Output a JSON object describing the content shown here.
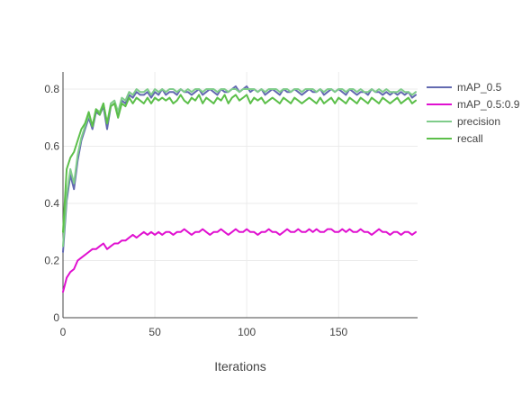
{
  "chart_data": {
    "type": "line",
    "title": "",
    "xlabel": "Iterations",
    "ylabel": "",
    "xlim": [
      0,
      193
    ],
    "ylim": [
      0,
      0.86
    ],
    "x_ticks": [
      0,
      50,
      100,
      150
    ],
    "x_tick_labels": [
      "0",
      "50",
      "100",
      "150"
    ],
    "y_ticks": [
      0,
      0.2,
      0.4,
      0.6,
      0.8
    ],
    "y_tick_labels": [
      "0",
      "0.2",
      "0.4",
      "0.6",
      "0.8"
    ],
    "grid": true,
    "legend_position": "top-right",
    "x_step": 2,
    "series": [
      {
        "name": "mAP_0.5",
        "color": "#636ab0",
        "values": [
          0.23,
          0.41,
          0.5,
          0.45,
          0.55,
          0.62,
          0.66,
          0.7,
          0.66,
          0.72,
          0.71,
          0.74,
          0.66,
          0.74,
          0.75,
          0.71,
          0.76,
          0.75,
          0.78,
          0.77,
          0.79,
          0.78,
          0.78,
          0.79,
          0.77,
          0.79,
          0.78,
          0.8,
          0.78,
          0.79,
          0.79,
          0.78,
          0.8,
          0.79,
          0.79,
          0.78,
          0.79,
          0.8,
          0.78,
          0.79,
          0.8,
          0.79,
          0.78,
          0.8,
          0.79,
          0.79,
          0.8,
          0.81,
          0.79,
          0.8,
          0.81,
          0.79,
          0.8,
          0.79,
          0.8,
          0.78,
          0.79,
          0.8,
          0.79,
          0.78,
          0.8,
          0.79,
          0.79,
          0.8,
          0.79,
          0.78,
          0.79,
          0.8,
          0.79,
          0.79,
          0.8,
          0.78,
          0.79,
          0.8,
          0.79,
          0.8,
          0.79,
          0.78,
          0.8,
          0.79,
          0.78,
          0.79,
          0.79,
          0.78,
          0.8,
          0.79,
          0.79,
          0.78,
          0.79,
          0.78,
          0.79,
          0.78,
          0.79,
          0.78,
          0.79,
          0.77,
          0.78
        ]
      },
      {
        "name": "mAP_0.5:0.9",
        "color": "#e010d0",
        "values": [
          0.09,
          0.14,
          0.16,
          0.17,
          0.2,
          0.21,
          0.22,
          0.23,
          0.24,
          0.24,
          0.25,
          0.26,
          0.24,
          0.25,
          0.26,
          0.26,
          0.27,
          0.27,
          0.28,
          0.29,
          0.28,
          0.29,
          0.3,
          0.29,
          0.3,
          0.29,
          0.3,
          0.29,
          0.3,
          0.3,
          0.29,
          0.3,
          0.3,
          0.31,
          0.3,
          0.29,
          0.3,
          0.3,
          0.31,
          0.3,
          0.29,
          0.3,
          0.3,
          0.31,
          0.3,
          0.29,
          0.3,
          0.31,
          0.3,
          0.3,
          0.31,
          0.3,
          0.3,
          0.29,
          0.3,
          0.3,
          0.31,
          0.3,
          0.3,
          0.29,
          0.3,
          0.31,
          0.3,
          0.3,
          0.31,
          0.3,
          0.3,
          0.31,
          0.3,
          0.31,
          0.3,
          0.3,
          0.31,
          0.31,
          0.3,
          0.3,
          0.31,
          0.3,
          0.31,
          0.3,
          0.3,
          0.31,
          0.3,
          0.3,
          0.29,
          0.3,
          0.31,
          0.3,
          0.3,
          0.29,
          0.3,
          0.3,
          0.29,
          0.3,
          0.3,
          0.29,
          0.3
        ]
      },
      {
        "name": "precision",
        "color": "#7fcc8a",
        "values": [
          0.25,
          0.43,
          0.52,
          0.47,
          0.57,
          0.63,
          0.67,
          0.71,
          0.67,
          0.73,
          0.72,
          0.75,
          0.68,
          0.75,
          0.76,
          0.72,
          0.77,
          0.76,
          0.79,
          0.78,
          0.8,
          0.79,
          0.79,
          0.8,
          0.78,
          0.8,
          0.79,
          0.8,
          0.79,
          0.8,
          0.8,
          0.79,
          0.8,
          0.79,
          0.8,
          0.79,
          0.8,
          0.8,
          0.79,
          0.8,
          0.8,
          0.8,
          0.79,
          0.8,
          0.8,
          0.79,
          0.8,
          0.8,
          0.79,
          0.8,
          0.8,
          0.8,
          0.8,
          0.79,
          0.8,
          0.79,
          0.8,
          0.8,
          0.8,
          0.79,
          0.8,
          0.8,
          0.79,
          0.8,
          0.8,
          0.79,
          0.8,
          0.8,
          0.8,
          0.79,
          0.8,
          0.79,
          0.8,
          0.8,
          0.79,
          0.8,
          0.8,
          0.79,
          0.8,
          0.8,
          0.79,
          0.8,
          0.79,
          0.79,
          0.8,
          0.79,
          0.8,
          0.79,
          0.8,
          0.79,
          0.79,
          0.79,
          0.8,
          0.79,
          0.79,
          0.78,
          0.79
        ]
      },
      {
        "name": "recall",
        "color": "#5cbf4a",
        "values": [
          0.3,
          0.52,
          0.56,
          0.58,
          0.62,
          0.66,
          0.68,
          0.72,
          0.67,
          0.73,
          0.71,
          0.75,
          0.68,
          0.74,
          0.75,
          0.7,
          0.75,
          0.74,
          0.77,
          0.75,
          0.77,
          0.76,
          0.75,
          0.77,
          0.75,
          0.77,
          0.76,
          0.77,
          0.76,
          0.77,
          0.75,
          0.76,
          0.78,
          0.76,
          0.75,
          0.77,
          0.76,
          0.78,
          0.75,
          0.77,
          0.76,
          0.75,
          0.77,
          0.76,
          0.78,
          0.75,
          0.77,
          0.78,
          0.76,
          0.77,
          0.78,
          0.75,
          0.77,
          0.76,
          0.77,
          0.75,
          0.76,
          0.77,
          0.76,
          0.75,
          0.77,
          0.76,
          0.75,
          0.77,
          0.76,
          0.75,
          0.76,
          0.77,
          0.76,
          0.75,
          0.77,
          0.75,
          0.76,
          0.77,
          0.75,
          0.77,
          0.76,
          0.75,
          0.77,
          0.76,
          0.75,
          0.77,
          0.76,
          0.75,
          0.77,
          0.76,
          0.75,
          0.77,
          0.76,
          0.75,
          0.76,
          0.77,
          0.75,
          0.76,
          0.77,
          0.75,
          0.76
        ]
      }
    ]
  }
}
